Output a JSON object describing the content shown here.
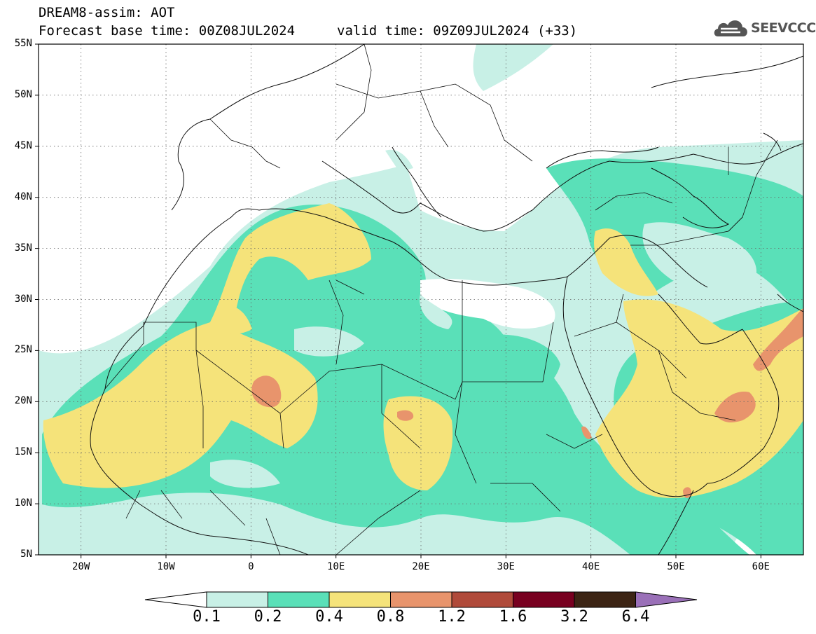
{
  "header": {
    "title": "DREAM8-assim: AOT",
    "base_time": "Forecast base time: 00Z08JUL2024",
    "valid_time": "valid time: 09Z09JUL2024 (+33)"
  },
  "logo": {
    "text": "SEEVCCC",
    "icon": "cloud-logo-icon",
    "color": "#555555"
  },
  "map": {
    "lat_range": [
      5,
      55
    ],
    "lon_range": [
      -25,
      65
    ],
    "lat_ticks": [
      {
        "value": 55,
        "label": "55N"
      },
      {
        "value": 50,
        "label": "50N"
      },
      {
        "value": 45,
        "label": "45N"
      },
      {
        "value": 40,
        "label": "40N"
      },
      {
        "value": 35,
        "label": "35N"
      },
      {
        "value": 30,
        "label": "30N"
      },
      {
        "value": 25,
        "label": "25N"
      },
      {
        "value": 20,
        "label": "20N"
      },
      {
        "value": 15,
        "label": "15N"
      },
      {
        "value": 10,
        "label": "10N"
      },
      {
        "value": 5,
        "label": "5N"
      }
    ],
    "lon_ticks": [
      {
        "value": -20,
        "label": "20W"
      },
      {
        "value": -10,
        "label": "10W"
      },
      {
        "value": 0,
        "label": "0"
      },
      {
        "value": 10,
        "label": "10E"
      },
      {
        "value": 20,
        "label": "20E"
      },
      {
        "value": 30,
        "label": "30E"
      },
      {
        "value": 40,
        "label": "40E"
      },
      {
        "value": 50,
        "label": "50E"
      },
      {
        "value": 60,
        "label": "60E"
      }
    ],
    "gridlines": "dotted"
  },
  "colorbar": {
    "levels": [
      "0.1",
      "0.2",
      "0.4",
      "0.8",
      "1.2",
      "1.6",
      "3.2",
      "6.4"
    ],
    "colors": [
      "#c8f0e6",
      "#5ae0b8",
      "#f5e37a",
      "#e8946c",
      "#b04a3a",
      "#780020",
      "#3c2414",
      "#9a70b8"
    ],
    "under_color": "#ffffff"
  }
}
